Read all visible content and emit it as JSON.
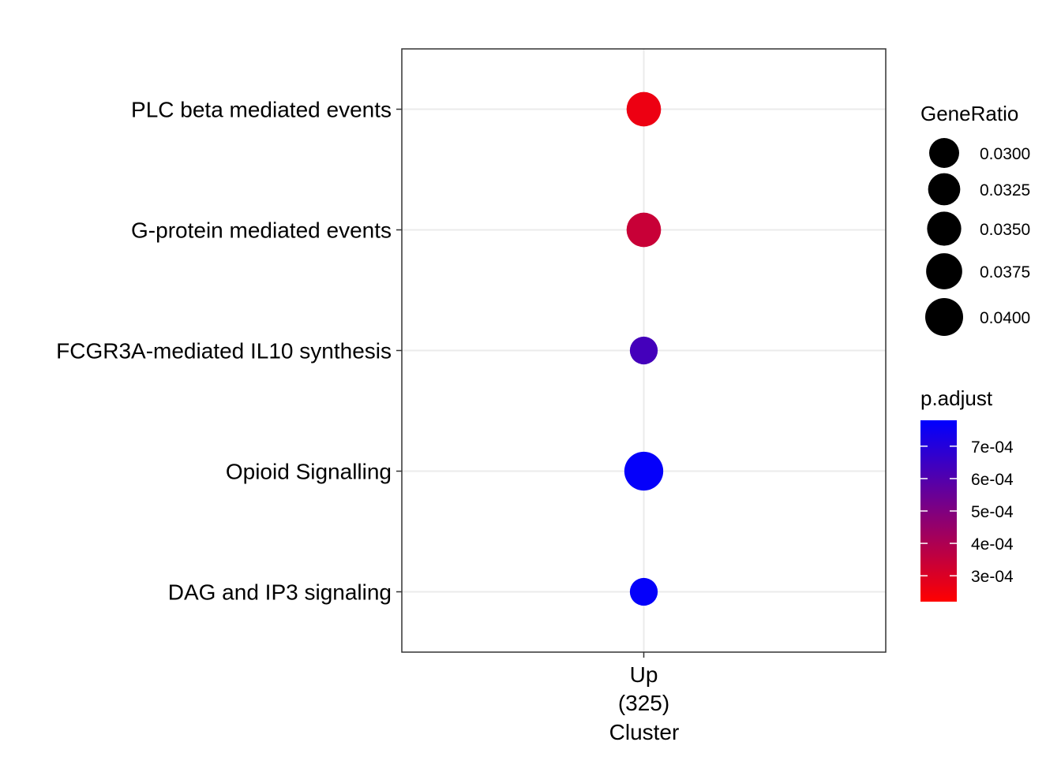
{
  "chart_data": {
    "type": "scatter",
    "title": "",
    "xlabel": "Cluster",
    "ylabel": "",
    "x_categories": [
      "Up\n(325)"
    ],
    "y_categories": [
      "DAG and IP3 signaling",
      "Opioid Signalling",
      "FCGR3A-mediated IL10 synthesis",
      "G-protein mediated events",
      "PLC beta mediated events"
    ],
    "points": [
      {
        "x": "Up\n(325)",
        "y": "PLC beta mediated events",
        "gene_ratio": 0.0354,
        "p_adjust": 0.00026
      },
      {
        "x": "Up\n(325)",
        "y": "G-protein mediated events",
        "gene_ratio": 0.0354,
        "p_adjust": 0.00034
      },
      {
        "x": "Up\n(325)",
        "y": "FCGR3A-mediated IL10 synthesis",
        "gene_ratio": 0.0277,
        "p_adjust": 0.00063
      },
      {
        "x": "Up\n(325)",
        "y": "Opioid Signalling",
        "gene_ratio": 0.0415,
        "p_adjust": 0.00077
      },
      {
        "x": "Up\n(325)",
        "y": "DAG and IP3 signaling",
        "gene_ratio": 0.0277,
        "p_adjust": 0.00077
      }
    ],
    "grid": true,
    "legend_position": "right",
    "size_legend": {
      "title": "GeneRatio",
      "breaks": [
        0.03,
        0.0325,
        0.035,
        0.0375,
        0.04
      ],
      "labels": [
        "0.0300",
        "0.0325",
        "0.0350",
        "0.0375",
        "0.0400"
      ]
    },
    "color_legend": {
      "title": "p.adjust",
      "low_color": "#ff0000",
      "high_color": "#0000ff",
      "range": [
        0.00022,
        0.00078
      ],
      "breaks": [
        0.0007,
        0.0006,
        0.0005,
        0.0004,
        0.0003
      ],
      "labels": [
        "7e-04",
        "6e-04",
        "5e-04",
        "4e-04",
        "3e-04"
      ]
    }
  }
}
